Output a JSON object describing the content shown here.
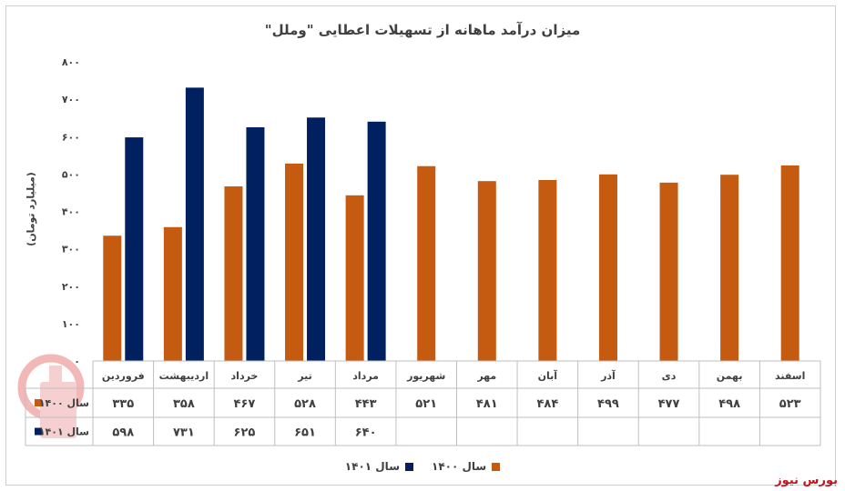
{
  "chart_data": {
    "type": "bar",
    "title": "میزان درآمد ماهانه از تسهیلات اعطایی \"وملل\"",
    "ylabel": "(میلیارد تومان)",
    "ylim": [
      0,
      800
    ],
    "yticks": [
      "۰",
      "۱۰۰",
      "۲۰۰",
      "۳۰۰",
      "۴۰۰",
      "۵۰۰",
      "۶۰۰",
      "۷۰۰",
      "۸۰۰"
    ],
    "ytick_values": [
      0,
      100,
      200,
      300,
      400,
      500,
      600,
      700,
      800
    ],
    "grid": false,
    "legend_position": "bottom",
    "categories": [
      "فروردین",
      "اردیبهشت",
      "خرداد",
      "تیر",
      "مرداد",
      "شهریور",
      "مهر",
      "آبان",
      "آذر",
      "دی",
      "بهمن",
      "اسفند"
    ],
    "series": [
      {
        "name": "سال ۱۴۰۰",
        "color": "#c55a11",
        "values": [
          335,
          358,
          467,
          528,
          443,
          521,
          481,
          484,
          499,
          477,
          498,
          523
        ],
        "labels": [
          "۳۳۵",
          "۳۵۸",
          "۴۶۷",
          "۵۲۸",
          "۴۴۳",
          "۵۲۱",
          "۴۸۱",
          "۴۸۴",
          "۴۹۹",
          "۴۷۷",
          "۴۹۸",
          "۵۲۳"
        ]
      },
      {
        "name": "سال ۱۴۰۱",
        "color": "#002060",
        "values": [
          598,
          731,
          625,
          651,
          640,
          null,
          null,
          null,
          null,
          null,
          null,
          null
        ],
        "labels": [
          "۵۹۸",
          "۷۳۱",
          "۶۲۵",
          "۶۵۱",
          "۶۴۰",
          "",
          "",
          "",
          "",
          "",
          "",
          ""
        ]
      }
    ]
  },
  "source_label": "بورس نیوز"
}
